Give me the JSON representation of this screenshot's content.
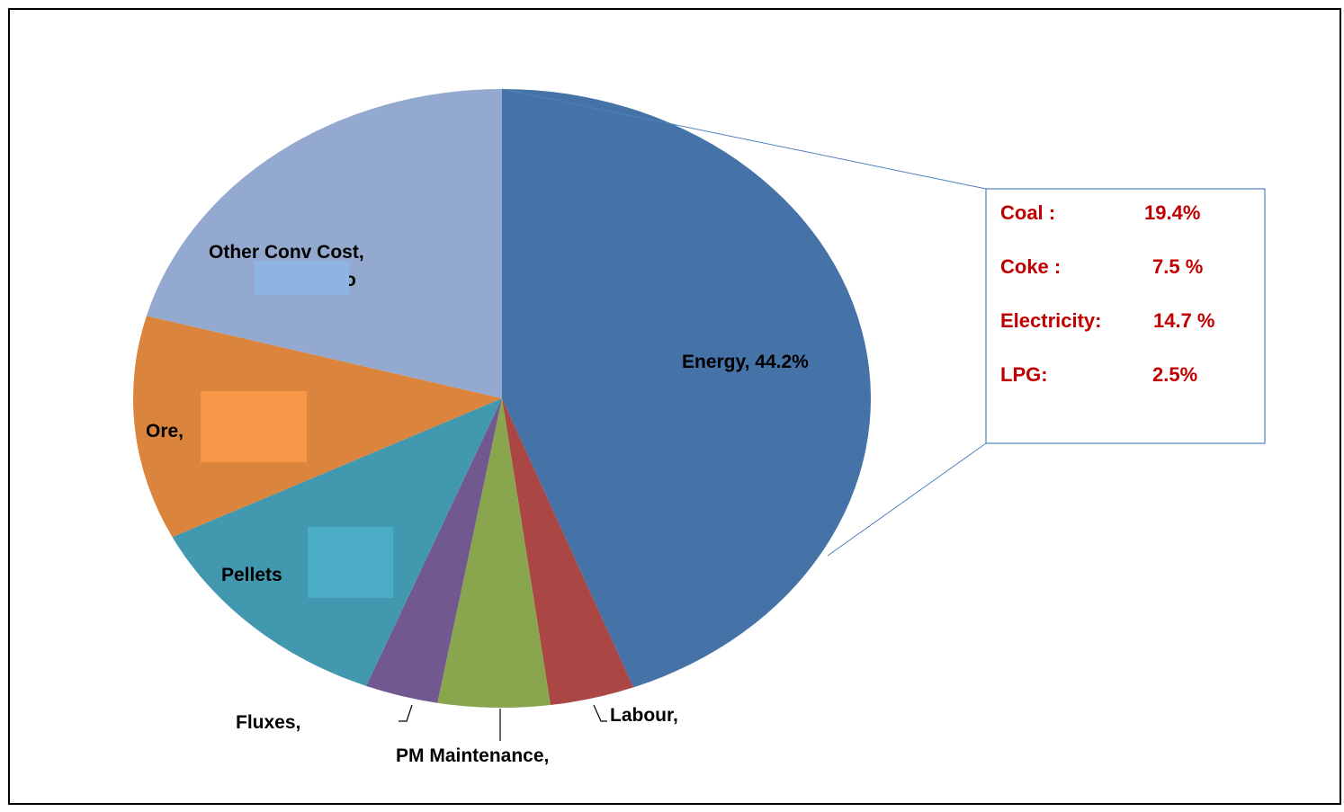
{
  "chart_data": {
    "type": "pie",
    "title": "",
    "slices": [
      {
        "label": "Energy, 44.2%",
        "value": 44.2,
        "color": "#4572A7"
      },
      {
        "label": "Labour,",
        "value": 3.7,
        "color": "#AA4643"
      },
      {
        "label": "PM Maintenance,",
        "value": 4.9,
        "color": "#89A54E"
      },
      {
        "label": "Fluxes,",
        "value": 3.2,
        "color": "#71588F"
      },
      {
        "label": "Pellets",
        "value": 11.6,
        "color": "#4198AF"
      },
      {
        "label": "Ore,",
        "value": 11.7,
        "color": "#DB843D"
      },
      {
        "label": "Other Conv Cost,",
        "value": 20.7,
        "color": "#93A9CF"
      }
    ],
    "energy_breakdown": [
      {
        "name": "Coal :",
        "value": "19.4%"
      },
      {
        "name": "Coke :",
        "value": "7.5 %"
      },
      {
        "name": "Electricity:",
        "value": "14.7 %"
      },
      {
        "name": "LPG:",
        "value": "2.5%"
      }
    ],
    "label_overlays": [
      {
        "slice": "Other Conv Cost,",
        "color": "#8EB4E3"
      },
      {
        "slice": "Ore,",
        "color": "#F79646"
      },
      {
        "slice": "Pellets",
        "color": "#4BACC6"
      }
    ],
    "other_conv_cost_partial_text": "o"
  }
}
